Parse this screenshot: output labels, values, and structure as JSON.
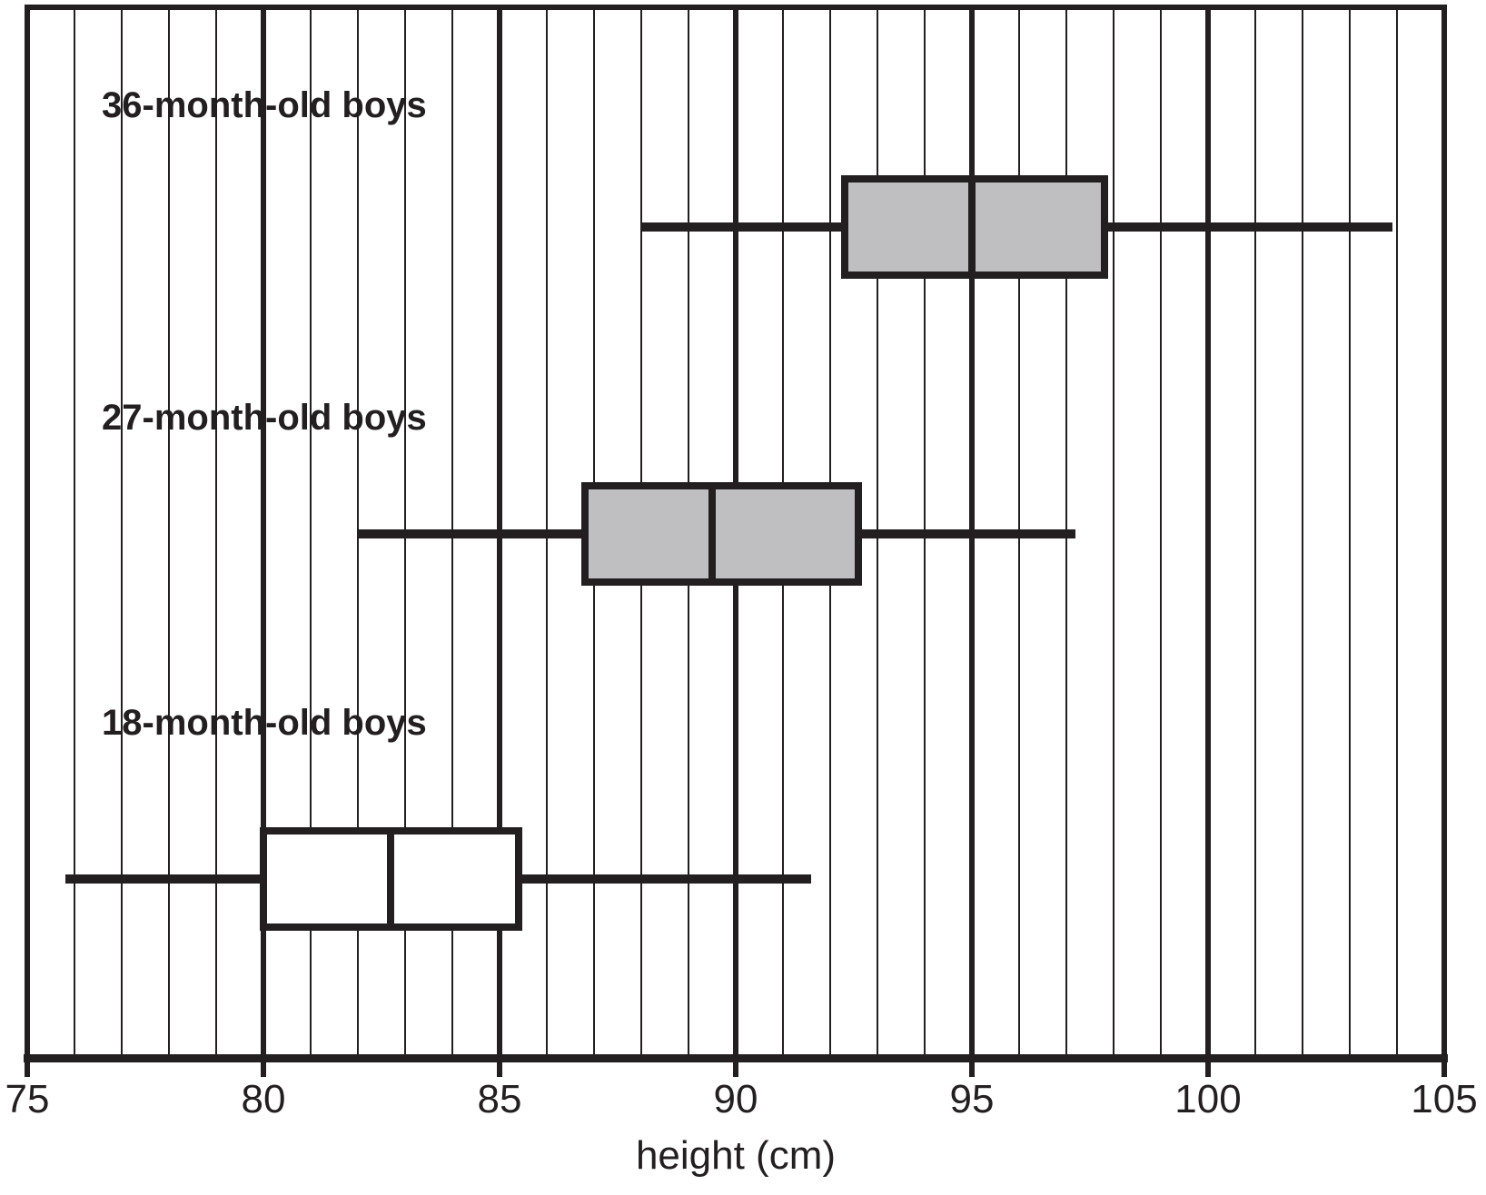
{
  "chart_data": {
    "type": "boxplot",
    "orientation": "horizontal",
    "title": "",
    "xlabel": "height (cm)",
    "xlim": [
      75,
      105
    ],
    "x_major_ticks": [
      75,
      80,
      85,
      90,
      95,
      100,
      105
    ],
    "x_minor_tick_step": 1,
    "grid": "vertical gridlines: minor every 1 cm (thin), major every 5 cm (thick)",
    "legend_position": "none",
    "line_color": "#231f20",
    "series": [
      {
        "label": "36-month-old boys",
        "min": 88.0,
        "q1": 92.3,
        "median": 95.0,
        "q3": 97.8,
        "max": 103.9,
        "box_fill": "#bfbfc1"
      },
      {
        "label": "27-month-old boys",
        "min": 82.0,
        "q1": 86.8,
        "median": 89.5,
        "q3": 92.6,
        "max": 97.2,
        "box_fill": "#bfbfc1"
      },
      {
        "label": "18-month-old boys",
        "min": 75.8,
        "q1": 80.0,
        "median": 82.7,
        "q3": 85.4,
        "max": 91.6,
        "box_fill": "#ffffff"
      }
    ]
  }
}
